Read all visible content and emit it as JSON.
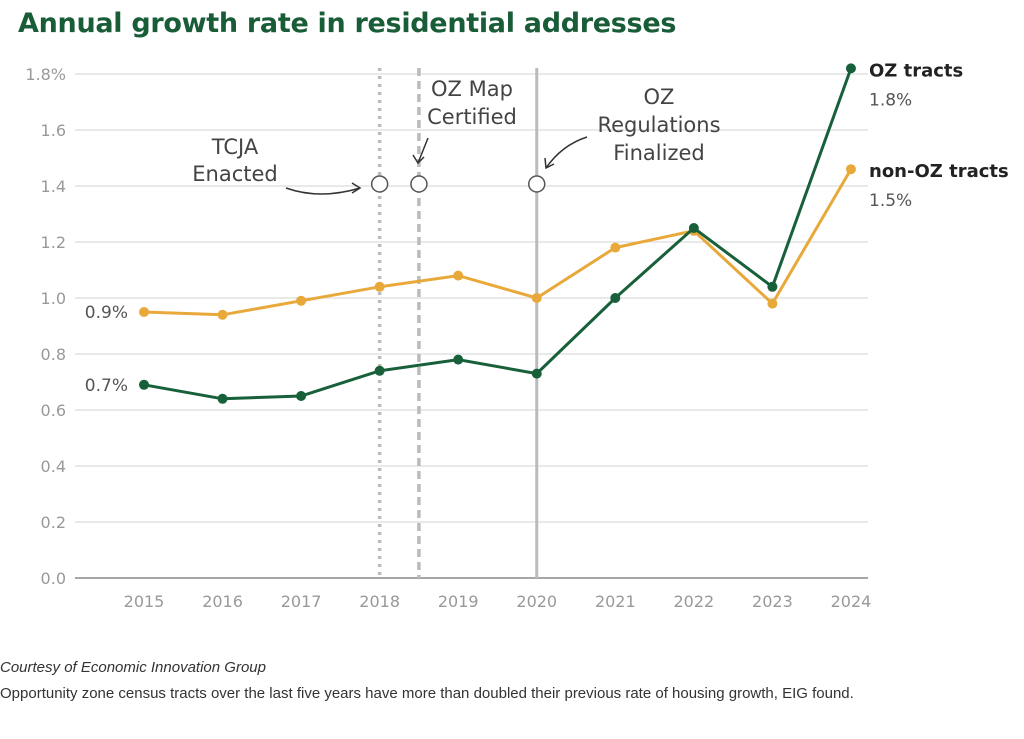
{
  "chart_data": {
    "type": "line",
    "title": "Annual growth rate in residential addresses",
    "x": [
      2015,
      2016,
      2017,
      2018,
      2019,
      2020,
      2021,
      2022,
      2023,
      2024
    ],
    "ylim": [
      0,
      1.8
    ],
    "yticks": [
      "0.0",
      "0.2",
      "0.4",
      "0.6",
      "0.8",
      "1.0",
      "1.2",
      "1.4",
      "1.6",
      "1.8%"
    ],
    "grid": true,
    "series": [
      {
        "name": "OZ tracts",
        "color": "#17603a",
        "values": [
          0.69,
          0.64,
          0.65,
          0.74,
          0.78,
          0.73,
          1.0,
          1.25,
          1.04,
          1.82
        ],
        "start_label": "0.7%",
        "end_label": "1.8%"
      },
      {
        "name": "non-OZ tracts",
        "color": "#e8a93a",
        "values": [
          0.95,
          0.94,
          0.99,
          1.04,
          1.08,
          1.0,
          1.18,
          1.24,
          0.98,
          1.46
        ],
        "start_label": "0.9%",
        "end_label": "1.5%"
      }
    ],
    "annotations": [
      {
        "x": 2018,
        "style": "dotted",
        "text": [
          "TCJA",
          "Enacted"
        ]
      },
      {
        "x": 2018.5,
        "style": "dashed",
        "text": [
          "OZ Map",
          "Certified"
        ]
      },
      {
        "x": 2020,
        "style": "solid",
        "text": [
          "OZ",
          "Regulations",
          "Finalized"
        ]
      }
    ]
  },
  "credit": "Courtesy of Economic Innovation Group",
  "caption": "Opportunity zone census tracts over the last five years have more than doubled their previous rate of housing growth, EIG found."
}
